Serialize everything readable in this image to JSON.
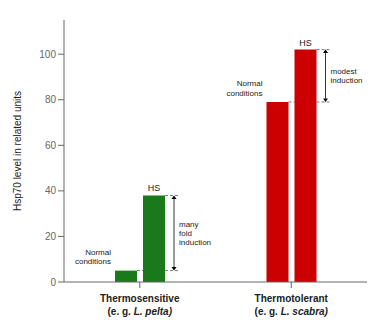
{
  "chart_data": {
    "type": "bar",
    "categories": [
      "Thermosensitive\n(e. g. L. pelta)",
      "Thermotolerant\n(e. g. L. scabra)"
    ],
    "series": [
      {
        "name": "Normal\nconditions",
        "colors": [
          "#1a7a1a",
          "#cc0000"
        ],
        "values": [
          5,
          79
        ]
      },
      {
        "name": "HS",
        "colors": [
          "#1a7a1a",
          "#cc0000"
        ],
        "values": [
          38,
          102
        ]
      }
    ],
    "annotations": [
      "many\nfold\ninduction",
      "modest\ninduction"
    ],
    "ylabel": "Hsp70 level in related units",
    "ylim": [
      0,
      115
    ],
    "yticks": [
      0,
      20,
      40,
      60,
      80,
      100
    ],
    "grid": false
  }
}
